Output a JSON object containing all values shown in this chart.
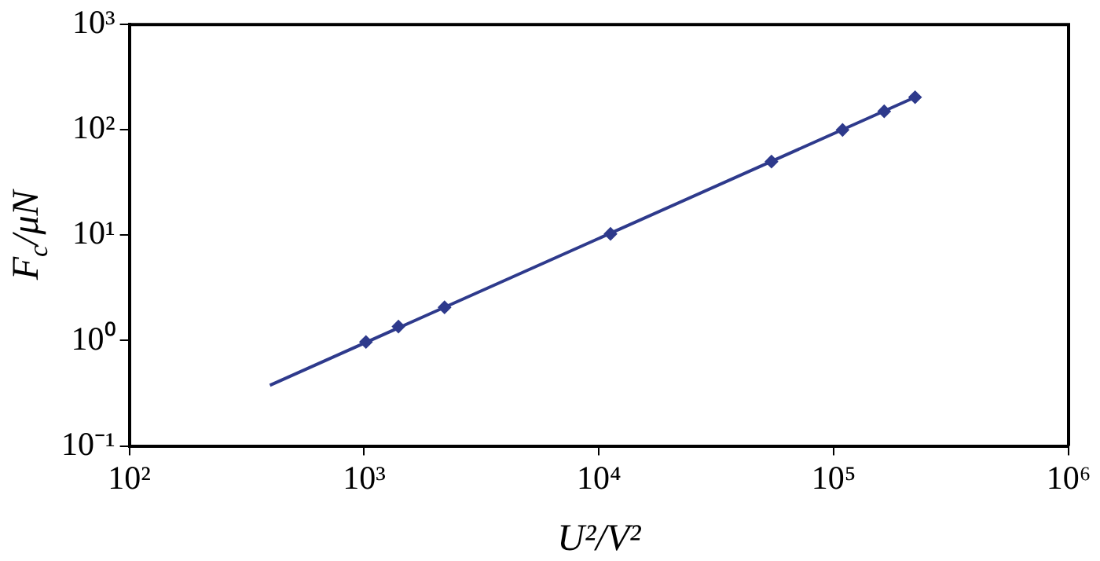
{
  "chart_data": {
    "type": "scatter",
    "xlabel": "U²/V²",
    "ylabel": "F$_{c}$/μN",
    "log": "xy",
    "grid": false,
    "legend": false,
    "xlim": [
      100,
      1000000
    ],
    "ylim": [
      0.1,
      1000
    ],
    "xticks": [
      {
        "value": 100,
        "label": "10²"
      },
      {
        "value": 1000,
        "label": "10³"
      },
      {
        "value": 10000,
        "label": "10⁴"
      },
      {
        "value": 100000,
        "label": "10⁵"
      },
      {
        "value": 1000000,
        "label": "10⁶"
      }
    ],
    "yticks": [
      {
        "value": 0.1,
        "label": "10⁻¹"
      },
      {
        "value": 1,
        "label": "10⁰"
      },
      {
        "value": 10,
        "label": "10¹"
      },
      {
        "value": 100,
        "label": "10²"
      },
      {
        "value": 1000,
        "label": "10³"
      }
    ],
    "series": [
      {
        "type": "line",
        "marker": "none",
        "color": "#2e3a8c",
        "x": [
          397,
          222000
        ],
        "values": [
          0.377,
          204
        ]
      },
      {
        "marker": "diamond",
        "color": "#2e3a8c",
        "x": [
          1018,
          1400,
          2200,
          11200,
          54300,
          109000,
          164000,
          222000
        ],
        "values": [
          0.97,
          1.36,
          2.07,
          10.3,
          50,
          100,
          150,
          204
        ]
      }
    ]
  }
}
